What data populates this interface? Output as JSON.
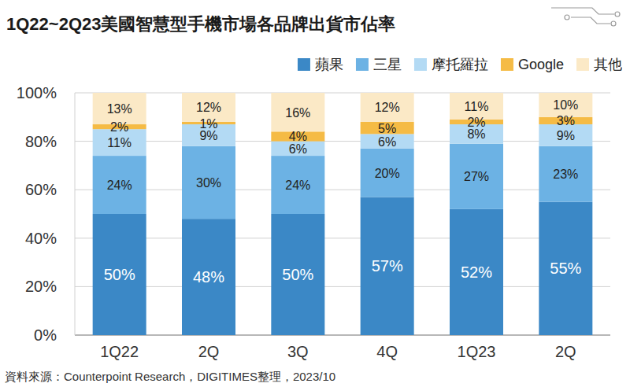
{
  "chart_data": {
    "type": "bar",
    "stacked": true,
    "title": "1Q22~2Q23美國智慧型手機市場各品牌出貨市佔率",
    "source": "資料來源：Counterpoint Research，DIGITIMES整理，2023/10",
    "categories": [
      "1Q22",
      "2Q",
      "3Q",
      "4Q",
      "1Q23",
      "2Q"
    ],
    "series": [
      {
        "name": "蘋果",
        "color": "#3b88c6",
        "values": [
          50,
          48,
          50,
          57,
          52,
          55
        ],
        "value_labels": [
          "50%",
          "48%",
          "50%",
          "57%",
          "52%",
          "55%"
        ]
      },
      {
        "name": "三星",
        "color": "#6cb2e4",
        "values": [
          24,
          30,
          24,
          20,
          27,
          23
        ],
        "value_labels": [
          "24%",
          "30%",
          "24%",
          "20%",
          "27%",
          "23%"
        ]
      },
      {
        "name": "摩托羅拉",
        "color": "#b3daf4",
        "values": [
          11,
          9,
          6,
          6,
          8,
          9
        ],
        "value_labels": [
          "11%",
          "9%",
          "6%",
          "6%",
          "8%",
          "9%"
        ]
      },
      {
        "name": "Google",
        "color": "#f5bb45",
        "values": [
          2,
          1,
          4,
          5,
          2,
          3
        ],
        "value_labels": [
          "2%",
          "1%",
          "4%",
          "5%",
          "2%",
          "3%"
        ]
      },
      {
        "name": "其他",
        "color": "#fbe9c6",
        "values": [
          13,
          12,
          16,
          12,
          11,
          10
        ],
        "value_labels": [
          "13%",
          "12%",
          "16%",
          "12%",
          "11%",
          "10%"
        ]
      }
    ],
    "ylim": [
      0,
      100
    ],
    "yticks": [
      {
        "value": 0,
        "label": "0%"
      },
      {
        "value": 20,
        "label": "20%"
      },
      {
        "value": 40,
        "label": "40%"
      },
      {
        "value": 60,
        "label": "60%"
      },
      {
        "value": 80,
        "label": "80%"
      },
      {
        "value": 100,
        "label": "100%"
      }
    ],
    "grid": true,
    "legend": "top-right",
    "data_labels": true
  }
}
